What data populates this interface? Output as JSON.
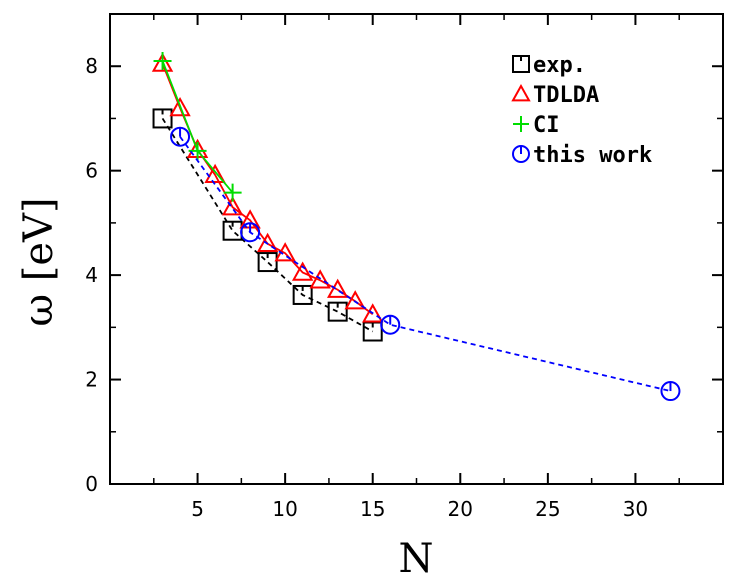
{
  "chart_data": {
    "type": "line",
    "xlabel": "N",
    "ylabel": "ω [eV]",
    "xlim": [
      0,
      35
    ],
    "ylim": [
      0,
      9
    ],
    "xticks": [
      5,
      10,
      15,
      20,
      25,
      30
    ],
    "yticks": [
      0,
      2,
      4,
      6,
      8
    ],
    "x_tick_labels": [
      "5",
      "10",
      "15",
      "20",
      "25",
      "30"
    ],
    "y_tick_labels": [
      "0",
      "2",
      "4",
      "6",
      "8"
    ],
    "grid": false,
    "legend_position": "top-right",
    "series": [
      {
        "name": "exp.",
        "marker": "square",
        "color": "#000000",
        "dashed": true,
        "points": [
          [
            3,
            7.0
          ],
          [
            7,
            4.85
          ],
          [
            9,
            4.25
          ],
          [
            11,
            3.62
          ],
          [
            13,
            3.3
          ],
          [
            15,
            2.92
          ]
        ]
      },
      {
        "name": "TDLDA",
        "marker": "triangle",
        "color": "#ff0000",
        "dashed": false,
        "points": [
          [
            3,
            8.05
          ],
          [
            4,
            7.2
          ],
          [
            5,
            6.4
          ],
          [
            6,
            5.92
          ],
          [
            7,
            5.3
          ],
          [
            8,
            5.05
          ],
          [
            9,
            4.6
          ],
          [
            10,
            4.42
          ],
          [
            11,
            4.05
          ],
          [
            12,
            3.9
          ],
          [
            13,
            3.72
          ],
          [
            14,
            3.5
          ],
          [
            15,
            3.25
          ]
        ]
      },
      {
        "name": "CI",
        "marker": "plus",
        "color": "#00dd00",
        "dashed": false,
        "points": [
          [
            3,
            8.1
          ],
          [
            5,
            6.38
          ],
          [
            7,
            5.58
          ]
        ]
      },
      {
        "name": "this work",
        "marker": "circle",
        "color": "#0000ff",
        "dashed": true,
        "points": [
          [
            4,
            6.65
          ],
          [
            8,
            4.82
          ],
          [
            16,
            3.05
          ],
          [
            32,
            1.78
          ]
        ]
      }
    ]
  },
  "colors": {
    "axis": "#000000",
    "exp": "#000000",
    "tdlda": "#ff0000",
    "ci": "#00dd00",
    "this_work": "#0000ff"
  }
}
